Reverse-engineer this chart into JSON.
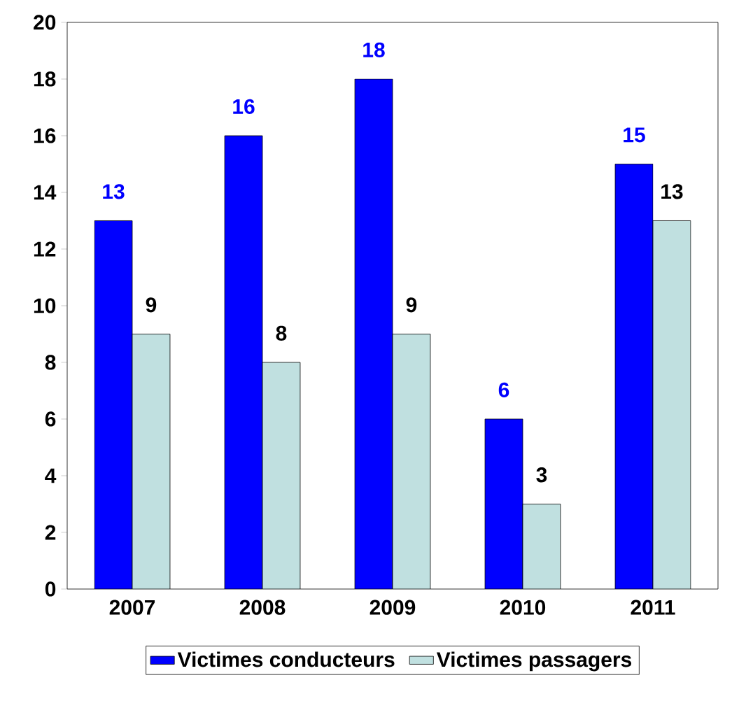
{
  "chart_data": {
    "type": "bar",
    "categories": [
      "2007",
      "2008",
      "2009",
      "2010",
      "2011"
    ],
    "series": [
      {
        "name": "Victimes conducteurs",
        "color": "#0000ff",
        "values": [
          13,
          16,
          18,
          6,
          15
        ]
      },
      {
        "name": "Victimes passagers",
        "color": "#c0e0e0",
        "values": [
          9,
          8,
          9,
          3,
          13
        ]
      }
    ],
    "ylim": [
      0,
      20
    ],
    "yticks": [
      0,
      2,
      4,
      6,
      8,
      10,
      12,
      14,
      16,
      18,
      20
    ],
    "data_labels": true,
    "grid": false,
    "legend": "bottom"
  }
}
